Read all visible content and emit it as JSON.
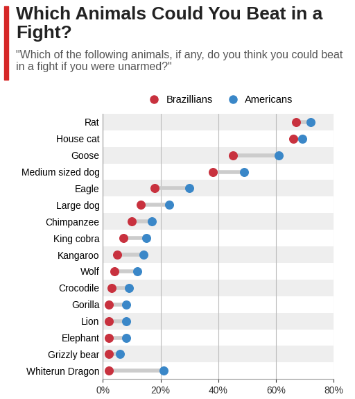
{
  "chart_data": {
    "type": "dumbbell",
    "title": "Which Animals Could You Beat in a Fight?",
    "subtitle": "\"Which of the following animals, if any, do you think you could beat in a fight if you were unarmed?\"",
    "orientation": "horizontal",
    "categories": [
      "Rat",
      "House cat",
      "Goose",
      "Medium sized dog",
      "Eagle",
      "Large dog",
      "Chimpanzee",
      "King cobra",
      "Kangaroo",
      "Wolf",
      "Crocodile",
      "Gorilla",
      "Lion",
      "Elephant",
      "Grizzly bear",
      "Whiterun Dragon"
    ],
    "series": [
      {
        "name": "Brazillians",
        "color": "#c8313e",
        "marker": "circle",
        "values": [
          67,
          66,
          45,
          38,
          18,
          13,
          10,
          7,
          5,
          4,
          3,
          2,
          2,
          2,
          2,
          2
        ]
      },
      {
        "name": "Americans",
        "color": "#3a87c8",
        "marker": "circle",
        "values": [
          72,
          69,
          61,
          49,
          30,
          23,
          17,
          15,
          14,
          12,
          9,
          8,
          8,
          8,
          6,
          21
        ]
      }
    ],
    "xlim": [
      0,
      80
    ],
    "xticks": [
      {
        "value": 0,
        "label": "0%"
      },
      {
        "value": 20,
        "label": "20%"
      },
      {
        "value": 40,
        "label": "40%"
      },
      {
        "value": 60,
        "label": "60%"
      },
      {
        "value": 80,
        "label": "80%"
      }
    ],
    "grid": true,
    "legend": "lower center"
  }
}
